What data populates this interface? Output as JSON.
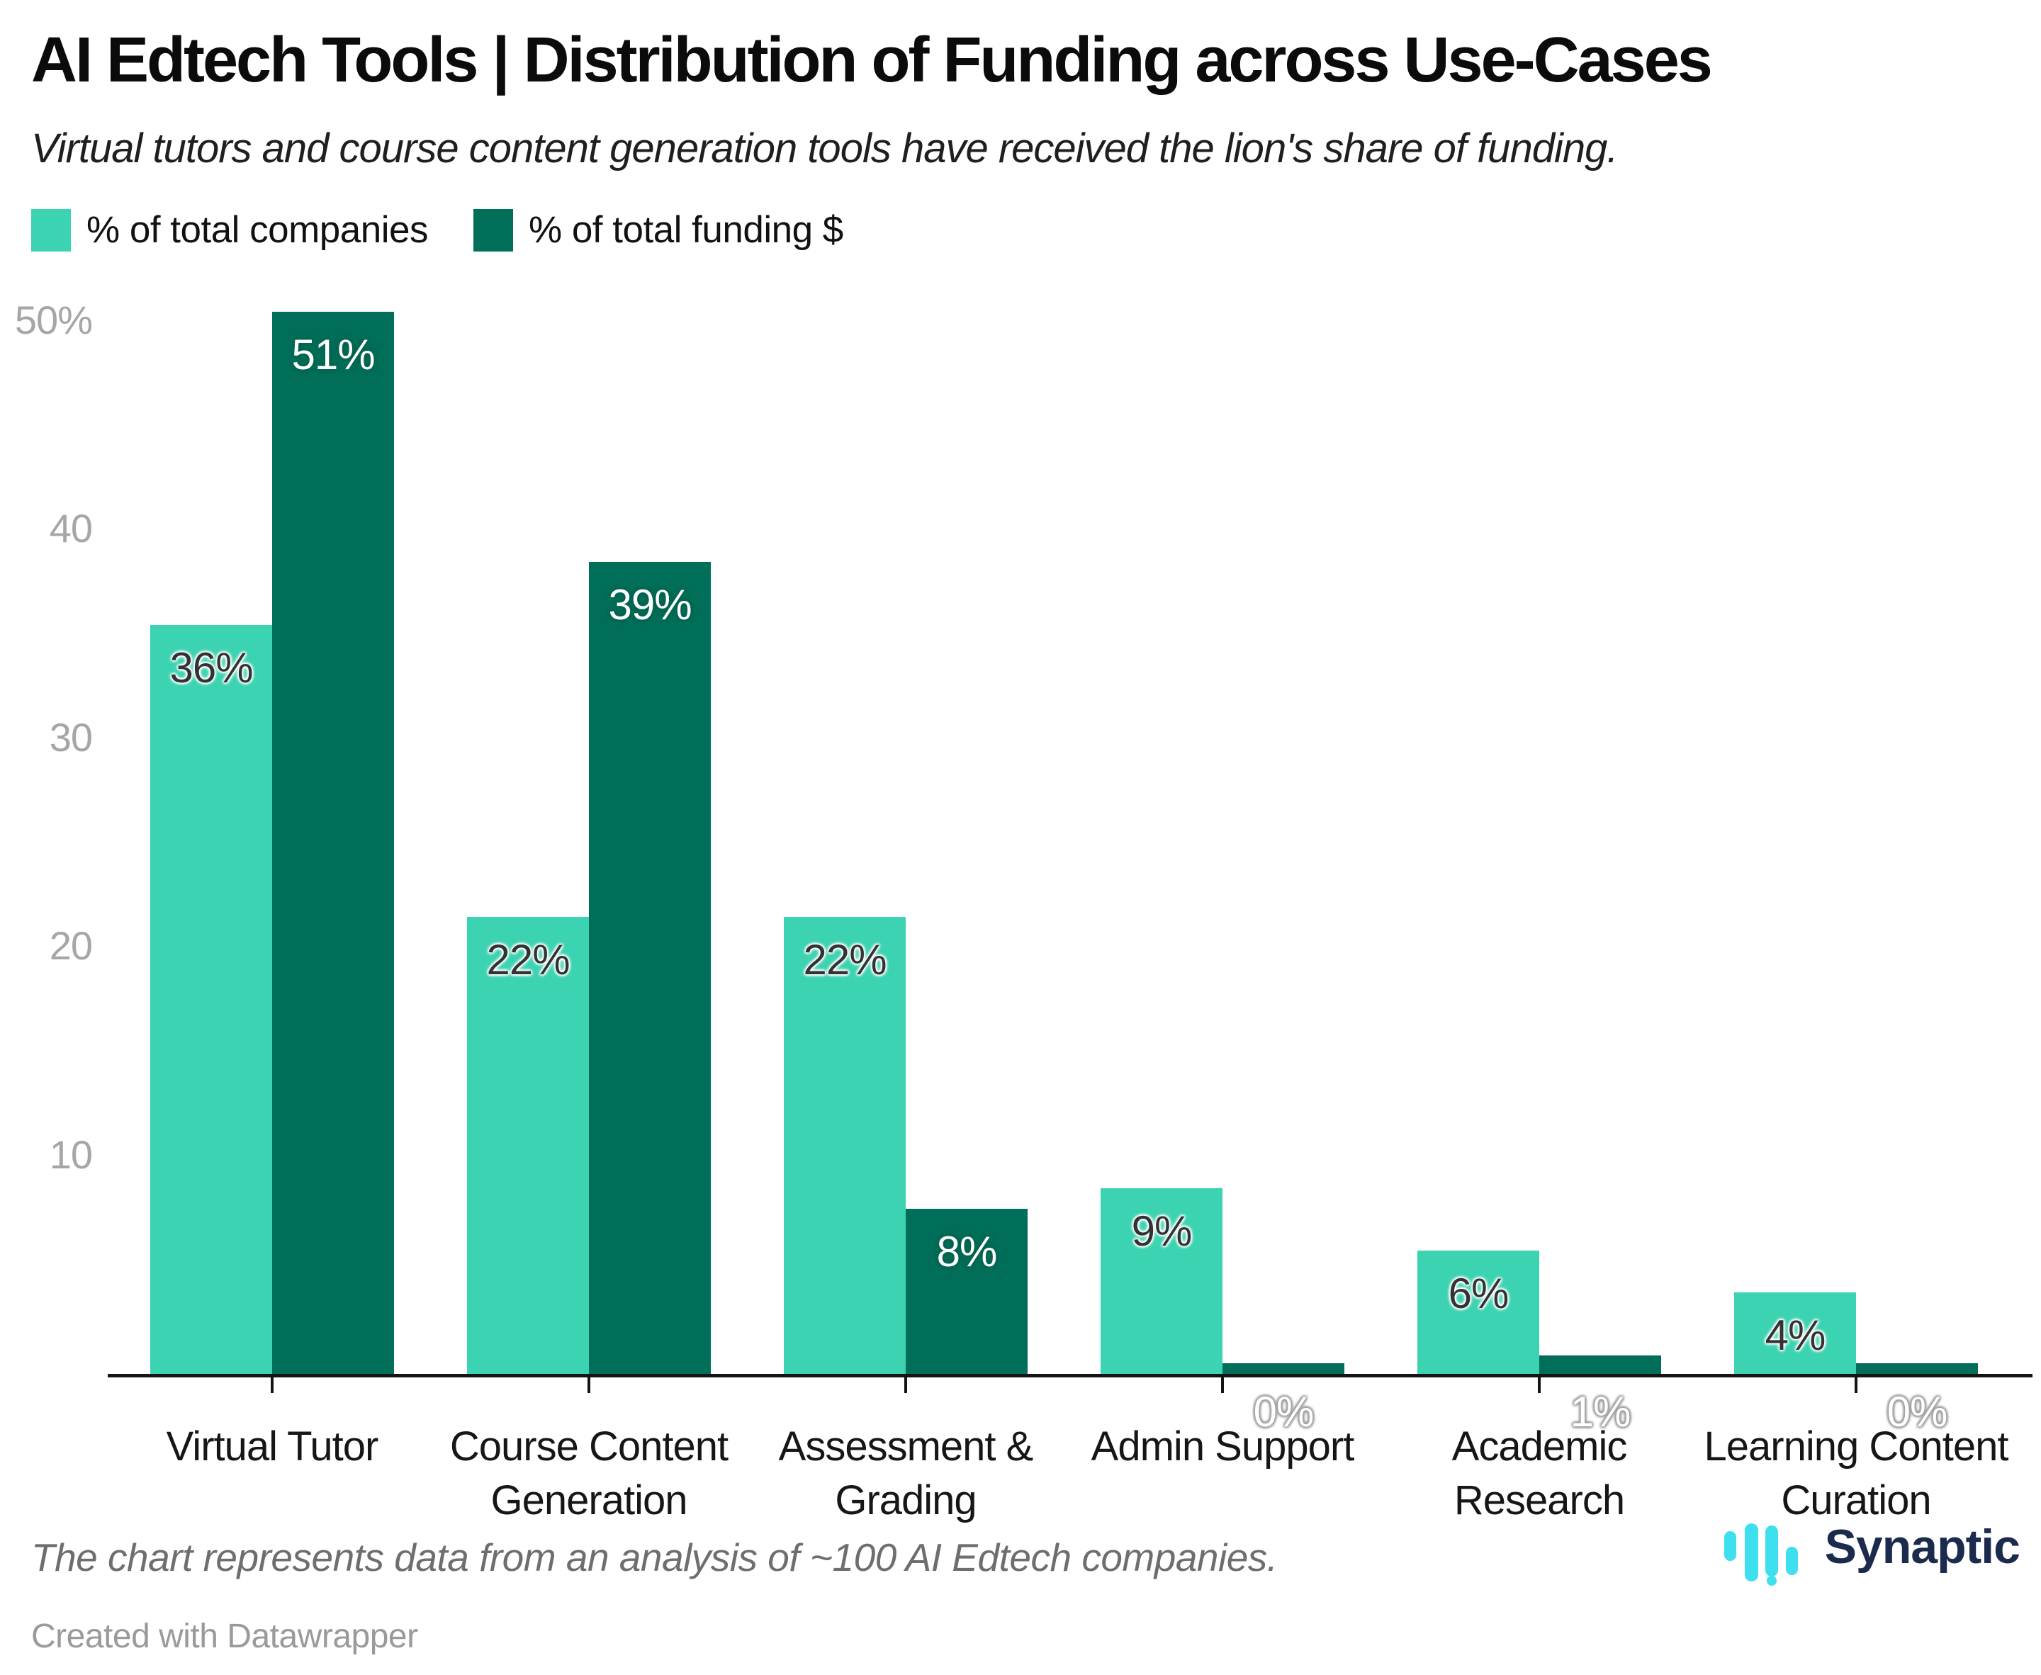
{
  "header": {
    "title": "AI Edtech Tools | Distribution of Funding across Use-Cases",
    "subtitle": "Virtual tutors and course content generation tools have received the lion's share of funding."
  },
  "legend": [
    {
      "label": "% of total companies",
      "color": "#3bd3b1"
    },
    {
      "label": "% of total funding $",
      "color": "#006e58"
    }
  ],
  "chart_data": {
    "type": "bar",
    "title": "AI Edtech Tools | Distribution of Funding across Use-Cases",
    "categories": [
      "Virtual Tutor",
      "Course Content Generation",
      "Assessment & Grading",
      "Admin Support",
      "Academic Research",
      "Learning Content Curation"
    ],
    "category_lines": [
      [
        "Virtual Tutor"
      ],
      [
        "Course Content",
        "Generation"
      ],
      [
        "Assessment &",
        "Grading"
      ],
      [
        "Admin Support"
      ],
      [
        "Academic",
        "Research"
      ],
      [
        "Learning Content",
        "Curation"
      ]
    ],
    "series": [
      {
        "name": "% of total companies",
        "color": "#3bd3b1",
        "values": [
          36,
          22,
          22,
          9,
          6,
          4
        ],
        "labels": [
          "36%",
          "22%",
          "22%",
          "9%",
          "6%",
          "4%"
        ]
      },
      {
        "name": "% of total funding $",
        "color": "#006e58",
        "values": [
          51,
          39,
          8,
          0,
          1,
          0
        ],
        "labels": [
          "51%",
          "39%",
          "8%",
          "0%",
          "1%",
          "0%"
        ]
      }
    ],
    "y_axis": {
      "ticks": [
        {
          "value": 50,
          "label": "50%"
        },
        {
          "value": 40,
          "label": "40"
        },
        {
          "value": 30,
          "label": "30"
        },
        {
          "value": 20,
          "label": "20"
        },
        {
          "value": 10,
          "label": "10"
        }
      ],
      "range": [
        0,
        52.8
      ]
    },
    "grid": false,
    "legend_position": "top-left",
    "xlabel": "",
    "ylabel": ""
  },
  "footer": {
    "note": "The chart represents data from an analysis of ~100 AI Edtech companies.",
    "credit": "Created with Datawrapper",
    "logo_text": "Synaptic",
    "logo_icon_color": "#3edfee",
    "logo_text_color": "#1b2b4d"
  }
}
